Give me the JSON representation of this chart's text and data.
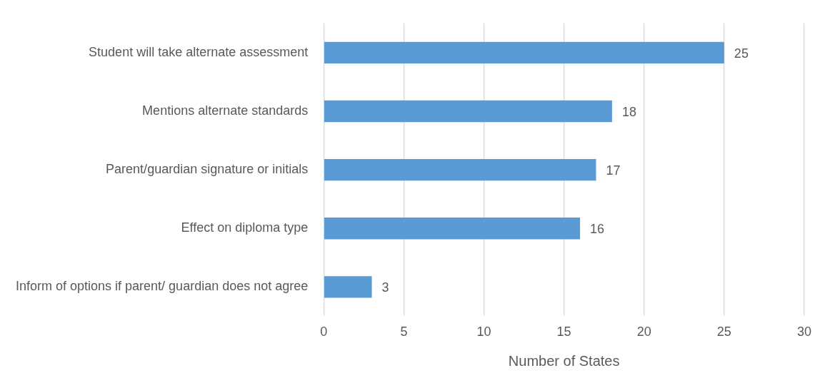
{
  "chart_data": {
    "type": "bar",
    "orientation": "horizontal",
    "xlabel": "Number of States",
    "categories": [
      "Student will take alternate assessment",
      "Mentions alternate standards",
      "Parent/guardian signature or initials",
      "Effect on diploma type",
      "Inform of options if parent/ guardian does not agree"
    ],
    "values": [
      25,
      18,
      17,
      16,
      3
    ],
    "color": "#5b9bd5",
    "xlim": [
      0,
      30
    ],
    "xticks": [
      0,
      5,
      10,
      15,
      20,
      25,
      30
    ],
    "grid": "x",
    "legend": false,
    "data_labels": true
  }
}
